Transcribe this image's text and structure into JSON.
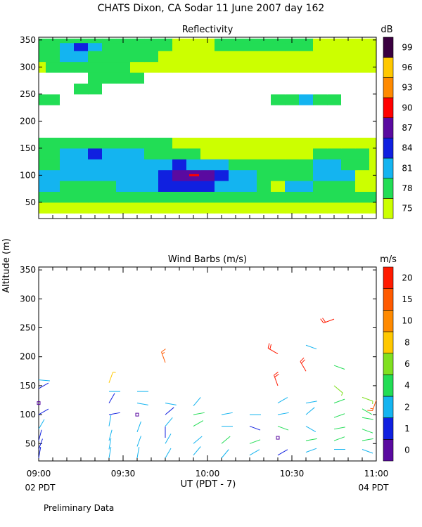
{
  "title": "CHATS Dixon, CA  Sodar  11 June 2007  day 162",
  "y_axis_label": "Altitude (m)",
  "x_axis_label": "UT  (PDT - 7)",
  "x_ticks": [
    "09:00",
    "09:30",
    "10:00",
    "10:30",
    "11:00"
  ],
  "x_left_note": "02 PDT",
  "x_right_note": "04 PDT",
  "footer_note": "Preliminary Data",
  "chart_data": [
    {
      "type": "heatmap",
      "title": "Reflectivity",
      "ylim": [
        20,
        355
      ],
      "y_ticks": [
        50,
        100,
        150,
        200,
        250,
        300,
        350
      ],
      "colorbar": {
        "unit": "dB",
        "labels": [
          "75",
          "78",
          "81",
          "84",
          "87",
          "90",
          "93",
          "96",
          "99"
        ],
        "colors": [
          "#ccff00",
          "#22dd55",
          "#14b4f0",
          "#1020e0",
          "#5a0aa0",
          "#ff0000",
          "#ff8a00",
          "#ffc800",
          "#3a0040"
        ]
      },
      "x": [
        "09:00",
        "09:05",
        "09:10",
        "09:15",
        "09:20",
        "09:25",
        "09:30",
        "09:35",
        "09:40",
        "09:45",
        "09:50",
        "09:55",
        "10:00",
        "10:05",
        "10:10",
        "10:15",
        "10:20",
        "10:25",
        "10:30",
        "10:35",
        "10:40",
        "10:45",
        "10:50",
        "10:55",
        "11:00"
      ],
      "y": [
        40,
        60,
        80,
        100,
        120,
        140,
        160,
        180,
        200,
        220,
        240,
        260,
        280,
        300,
        320,
        340,
        350
      ],
      "values_level_index": [
        [
          0,
          0,
          0,
          0,
          0,
          0,
          0,
          0,
          0,
          0,
          0,
          0,
          0,
          0,
          0,
          0,
          0,
          0,
          0,
          0,
          0,
          0,
          0,
          0,
          0
        ],
        [
          1,
          1,
          1,
          1,
          1,
          1,
          1,
          1,
          1,
          1,
          1,
          1,
          1,
          1,
          1,
          1,
          1,
          1,
          1,
          1,
          1,
          1,
          1,
          1,
          1
        ],
        [
          2,
          2,
          1,
          1,
          1,
          1,
          2,
          2,
          2,
          3,
          3,
          3,
          3,
          2,
          2,
          2,
          1,
          0,
          2,
          2,
          1,
          1,
          1,
          0,
          0
        ],
        [
          2,
          2,
          2,
          2,
          2,
          2,
          2,
          2,
          2,
          3,
          4,
          4,
          4,
          3,
          2,
          2,
          1,
          1,
          1,
          1,
          2,
          2,
          2,
          0,
          0
        ],
        [
          1,
          1,
          2,
          2,
          2,
          2,
          2,
          2,
          2,
          2,
          3,
          2,
          2,
          2,
          1,
          1,
          1,
          1,
          1,
          1,
          2,
          2,
          1,
          1,
          0
        ],
        [
          1,
          1,
          2,
          2,
          3,
          2,
          2,
          2,
          1,
          1,
          1,
          1,
          0,
          0,
          0,
          0,
          0,
          0,
          0,
          0,
          1,
          1,
          1,
          1,
          0
        ],
        [
          1,
          1,
          1,
          1,
          1,
          1,
          1,
          1,
          1,
          1,
          0,
          0,
          0,
          0,
          0,
          0,
          0,
          0,
          0,
          0,
          0,
          0,
          0,
          0,
          0
        ],
        [
          0,
          0,
          0,
          0,
          0,
          0,
          0,
          0,
          0,
          0,
          0,
          0,
          0,
          0,
          0,
          0,
          0,
          0,
          0,
          0,
          0,
          0,
          0,
          0,
          0
        ],
        [
          0,
          0,
          0,
          0,
          0,
          0,
          0,
          0,
          0,
          0,
          0,
          0,
          0,
          0,
          0,
          0,
          0,
          0,
          0,
          0,
          0,
          0,
          0,
          0,
          0
        ],
        [
          0,
          0,
          0,
          0,
          0,
          0,
          0,
          0,
          0,
          0,
          0,
          0,
          0,
          0,
          0,
          0,
          0,
          0,
          0,
          0,
          0,
          0,
          0,
          0,
          0
        ],
        [
          1,
          1,
          0,
          0,
          0,
          0,
          0,
          0,
          0,
          0,
          0,
          0,
          0,
          0,
          0,
          0,
          0,
          1,
          1,
          2,
          1,
          1,
          0,
          0,
          0
        ],
        [
          0,
          0,
          0,
          1,
          1,
          0,
          0,
          0,
          0,
          0,
          0,
          0,
          0,
          0,
          0,
          0,
          0,
          0,
          0,
          0,
          0,
          0,
          0,
          0,
          0
        ],
        [
          0,
          0,
          0,
          0,
          1,
          1,
          1,
          1,
          0,
          0,
          0,
          0,
          0,
          0,
          0,
          0,
          0,
          0,
          0,
          0,
          0,
          0,
          0,
          0,
          0
        ],
        [
          0,
          1,
          1,
          1,
          1,
          1,
          1,
          0,
          0,
          0,
          0,
          0,
          0,
          0,
          0,
          0,
          0,
          0,
          0,
          0,
          0,
          0,
          0,
          0,
          0
        ],
        [
          1,
          1,
          2,
          2,
          1,
          1,
          1,
          1,
          1,
          0,
          0,
          0,
          0,
          0,
          0,
          0,
          0,
          0,
          0,
          0,
          0,
          0,
          0,
          0,
          0
        ],
        [
          1,
          1,
          2,
          3,
          2,
          1,
          1,
          1,
          1,
          1,
          0,
          0,
          0,
          1,
          1,
          1,
          1,
          1,
          1,
          1,
          0,
          0,
          0,
          0,
          0
        ],
        [
          1,
          1,
          1,
          1,
          1,
          1,
          1,
          1,
          1,
          1,
          0,
          0,
          0,
          1,
          1,
          1,
          1,
          1,
          1,
          1,
          0,
          0,
          0,
          0,
          0
        ]
      ]
    },
    {
      "type": "scatter",
      "title": "Wind Barbs (m/s)",
      "ylim": [
        20,
        355
      ],
      "y_ticks": [
        50,
        100,
        150,
        200,
        250,
        300,
        350
      ],
      "colorbar": {
        "unit": "m/s",
        "labels": [
          "0",
          "1",
          "2",
          "4",
          "6",
          "8",
          "10",
          "15",
          "20"
        ],
        "colors": [
          "#5a0aa0",
          "#1020e0",
          "#14b4f0",
          "#22dd55",
          "#80e020",
          "#ffc800",
          "#ff8a00",
          "#ff5a00",
          "#ff1a00"
        ]
      },
      "barbs": [
        {
          "t": "09:00",
          "alt": 25,
          "spd": 1.5,
          "dir": 10
        },
        {
          "t": "09:00",
          "alt": 40,
          "spd": 1.5,
          "dir": 20
        },
        {
          "t": "09:00",
          "alt": 55,
          "spd": 1.5,
          "dir": 15
        },
        {
          "t": "09:00",
          "alt": 75,
          "spd": 2.0,
          "dir": 30
        },
        {
          "t": "09:00",
          "alt": 100,
          "spd": 1.0,
          "dir": 60
        },
        {
          "t": "09:00",
          "alt": 120,
          "spd": 0.3,
          "dir": 0
        },
        {
          "t": "09:00",
          "alt": 145,
          "spd": 1.0,
          "dir": 60
        },
        {
          "t": "09:00",
          "alt": 160,
          "spd": 2.0,
          "dir": 95
        },
        {
          "t": "09:25",
          "alt": 25,
          "spd": 2.0,
          "dir": 10
        },
        {
          "t": "09:25",
          "alt": 40,
          "spd": 2.0,
          "dir": 10
        },
        {
          "t": "09:25",
          "alt": 55,
          "spd": 2.0,
          "dir": 15
        },
        {
          "t": "09:25",
          "alt": 80,
          "spd": 2.0,
          "dir": 10
        },
        {
          "t": "09:25",
          "alt": 100,
          "spd": 1.5,
          "dir": 80
        },
        {
          "t": "09:25",
          "alt": 120,
          "spd": 1.5,
          "dir": 30
        },
        {
          "t": "09:25",
          "alt": 140,
          "spd": 2.0,
          "dir": 90
        },
        {
          "t": "09:25",
          "alt": 155,
          "spd": 9,
          "dir": 20
        },
        {
          "t": "09:35",
          "alt": 25,
          "spd": 2.0,
          "dir": 10
        },
        {
          "t": "09:35",
          "alt": 45,
          "spd": 2.0,
          "dir": 20
        },
        {
          "t": "09:35",
          "alt": 70,
          "spd": 2.0,
          "dir": 20
        },
        {
          "t": "09:35",
          "alt": 100,
          "spd": 0.3,
          "dir": 0
        },
        {
          "t": "09:35",
          "alt": 120,
          "spd": 2.0,
          "dir": 100
        },
        {
          "t": "09:35",
          "alt": 140,
          "spd": 2.0,
          "dir": 90
        },
        {
          "t": "09:45",
          "alt": 25,
          "spd": 2.0,
          "dir": 30
        },
        {
          "t": "09:45",
          "alt": 50,
          "spd": 2.0,
          "dir": 30
        },
        {
          "t": "09:45",
          "alt": 60,
          "spd": 1.0,
          "dir": 0
        },
        {
          "t": "09:45",
          "alt": 80,
          "spd": 2.0,
          "dir": 40
        },
        {
          "t": "09:45",
          "alt": 100,
          "spd": 1.5,
          "dir": 50
        },
        {
          "t": "09:45",
          "alt": 120,
          "spd": 2.0,
          "dir": 100
        },
        {
          "t": "09:45",
          "alt": 190,
          "spd": 15,
          "dir": 340
        },
        {
          "t": "09:55",
          "alt": 30,
          "spd": 2.0,
          "dir": 40
        },
        {
          "t": "09:55",
          "alt": 50,
          "spd": 2.0,
          "dir": 50
        },
        {
          "t": "09:55",
          "alt": 80,
          "spd": 4.5,
          "dir": 60
        },
        {
          "t": "09:55",
          "alt": 100,
          "spd": 4.5,
          "dir": 80
        },
        {
          "t": "09:55",
          "alt": 115,
          "spd": 2.0,
          "dir": 40
        },
        {
          "t": "10:05",
          "alt": 25,
          "spd": 2.0,
          "dir": 40
        },
        {
          "t": "10:05",
          "alt": 50,
          "spd": 4.5,
          "dir": 50
        },
        {
          "t": "10:05",
          "alt": 80,
          "spd": 2.0,
          "dir": 90
        },
        {
          "t": "10:05",
          "alt": 100,
          "spd": 2.0,
          "dir": 80
        },
        {
          "t": "10:15",
          "alt": 30,
          "spd": 2.0,
          "dir": 60
        },
        {
          "t": "10:15",
          "alt": 50,
          "spd": 4.5,
          "dir": 70
        },
        {
          "t": "10:15",
          "alt": 80,
          "spd": 1.5,
          "dir": 110
        },
        {
          "t": "10:15",
          "alt": 100,
          "spd": 2.0,
          "dir": 90
        },
        {
          "t": "10:25",
          "alt": 30,
          "spd": 1.5,
          "dir": 60
        },
        {
          "t": "10:25",
          "alt": 60,
          "spd": 0.3,
          "dir": 0
        },
        {
          "t": "10:25",
          "alt": 80,
          "spd": 4.5,
          "dir": 110
        },
        {
          "t": "10:25",
          "alt": 100,
          "spd": 2.0,
          "dir": 80
        },
        {
          "t": "10:25",
          "alt": 120,
          "spd": 2.0,
          "dir": 60
        },
        {
          "t": "10:25",
          "alt": 150,
          "spd": 20,
          "dir": 340
        },
        {
          "t": "10:25",
          "alt": 205,
          "spd": 20,
          "dir": 300
        },
        {
          "t": "10:35",
          "alt": 35,
          "spd": 2.0,
          "dir": 70
        },
        {
          "t": "10:35",
          "alt": 55,
          "spd": 4.5,
          "dir": 80
        },
        {
          "t": "10:35",
          "alt": 80,
          "spd": 2.0,
          "dir": 120
        },
        {
          "t": "10:35",
          "alt": 100,
          "spd": 2.0,
          "dir": 50
        },
        {
          "t": "10:35",
          "alt": 120,
          "spd": 2.0,
          "dir": 80
        },
        {
          "t": "10:35",
          "alt": 175,
          "spd": 20,
          "dir": 330
        },
        {
          "t": "10:35",
          "alt": 220,
          "spd": 2.0,
          "dir": 110
        },
        {
          "t": "10:45",
          "alt": 40,
          "spd": 2.0,
          "dir": 90
        },
        {
          "t": "10:45",
          "alt": 55,
          "spd": 4.5,
          "dir": 70
        },
        {
          "t": "10:45",
          "alt": 75,
          "spd": 4.5,
          "dir": 80
        },
        {
          "t": "10:45",
          "alt": 95,
          "spd": 4.5,
          "dir": 70
        },
        {
          "t": "10:45",
          "alt": 120,
          "spd": 4.5,
          "dir": 70
        },
        {
          "t": "10:45",
          "alt": 150,
          "spd": 6.0,
          "dir": 130
        },
        {
          "t": "10:45",
          "alt": 185,
          "spd": 4.5,
          "dir": 110
        },
        {
          "t": "10:45",
          "alt": 265,
          "spd": 20,
          "dir": 250
        },
        {
          "t": "10:55",
          "alt": 40,
          "spd": 2.0,
          "dir": 110
        },
        {
          "t": "10:55",
          "alt": 55,
          "spd": 4.5,
          "dir": 80
        },
        {
          "t": "10:55",
          "alt": 75,
          "spd": 4.5,
          "dir": 110
        },
        {
          "t": "10:55",
          "alt": 95,
          "spd": 4.5,
          "dir": 100
        },
        {
          "t": "10:55",
          "alt": 110,
          "spd": 4.5,
          "dir": 120
        },
        {
          "t": "10:55",
          "alt": 130,
          "spd": 6.0,
          "dir": 110
        },
        {
          "t": "11:00",
          "alt": 125,
          "spd": 15,
          "dir": 200
        }
      ]
    }
  ]
}
